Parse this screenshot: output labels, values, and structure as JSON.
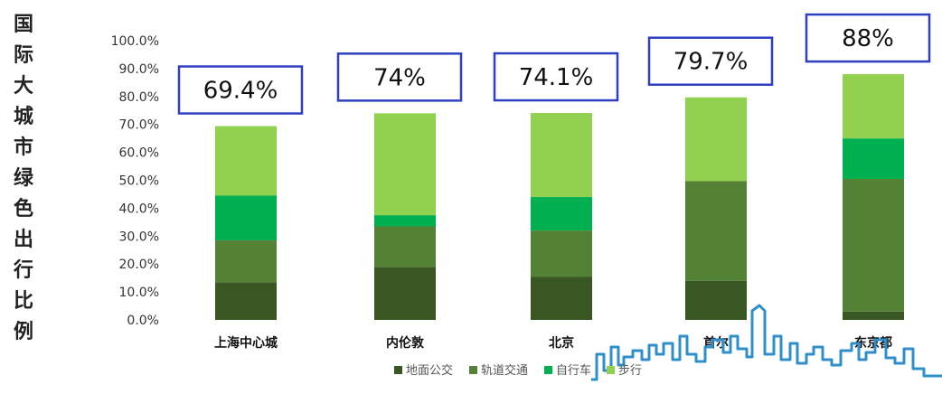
{
  "chart_data": {
    "type": "bar",
    "stacked": true,
    "ylabel": "国际大城市绿色出行比例",
    "categories": [
      "上海中心城",
      "内伦敦",
      "北京",
      "首尔",
      "东京都"
    ],
    "series": [
      {
        "name": "地面公交",
        "color": "#385723",
        "values": [
          13.5,
          19.0,
          15.5,
          14.0,
          3.0
        ]
      },
      {
        "name": "轨道交通",
        "color": "#548235",
        "values": [
          15.0,
          14.5,
          16.5,
          35.7,
          47.5
        ]
      },
      {
        "name": "自行车",
        "color": "#00b050",
        "values": [
          16.0,
          4.0,
          12.0,
          0.0,
          14.5
        ]
      },
      {
        "name": "步行",
        "color": "#92d050",
        "values": [
          24.9,
          36.5,
          30.1,
          30.0,
          23.0
        ]
      }
    ],
    "annotations": [
      "69.4%",
      "74%",
      "74.1%",
      "79.7%",
      "88%"
    ],
    "y_ticks": [
      "0.0%",
      "10.0%",
      "20.0%",
      "30.0%",
      "40.0%",
      "50.0%",
      "60.0%",
      "70.0%",
      "80.0%",
      "90.0%",
      "100.0%"
    ],
    "ylim": [
      0,
      100
    ],
    "grid": false,
    "legend_position": "bottom",
    "annotation_box_color": "#2f3fc4"
  }
}
